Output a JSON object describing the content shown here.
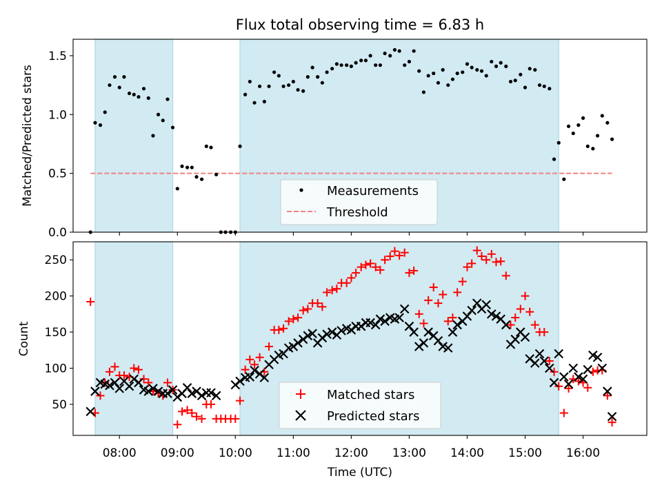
{
  "title": "Flux total observing time = 6.83 h",
  "colors": {
    "shade": "#add8e6",
    "threshold": "#f08080",
    "measurement": "#000000",
    "matched": "#ff0000",
    "predicted": "#000000"
  },
  "chart_data": [
    {
      "type": "scatter",
      "panel": "top",
      "title": "Flux total observing time = 6.83 h",
      "xlabel": "",
      "ylabel": "Matched/Predicted stars",
      "xlim": [
        7.2,
        17.1
      ],
      "ylim": [
        0,
        1.64
      ],
      "yticks": [
        {
          "value": 0.0,
          "label": "0.0"
        },
        {
          "value": 0.5,
          "label": "0.5"
        },
        {
          "value": 1.0,
          "label": "1.0"
        },
        {
          "value": 1.5,
          "label": "1.5"
        }
      ],
      "shaded_intervals": [
        [
          7.58,
          8.92
        ],
        [
          10.08,
          15.58
        ]
      ],
      "threshold": {
        "name": "Threshold",
        "value": 0.5,
        "x_range": [
          7.5,
          16.5
        ]
      },
      "legend": {
        "position": "lower-center",
        "entries": [
          "Measurements",
          "Threshold"
        ]
      },
      "series": [
        {
          "name": "Measurements",
          "x": [
            7.5,
            7.58,
            7.67,
            7.75,
            7.83,
            7.92,
            8.0,
            8.08,
            8.17,
            8.25,
            8.33,
            8.42,
            8.5,
            8.58,
            8.67,
            8.75,
            8.83,
            8.92,
            9.0,
            9.08,
            9.17,
            9.25,
            9.33,
            9.42,
            9.5,
            9.58,
            9.67,
            9.75,
            9.83,
            9.92,
            10.0,
            10.08,
            10.17,
            10.25,
            10.33,
            10.42,
            10.5,
            10.58,
            10.67,
            10.75,
            10.83,
            10.92,
            11.0,
            11.08,
            11.17,
            11.25,
            11.33,
            11.42,
            11.5,
            11.58,
            11.67,
            11.75,
            11.83,
            11.92,
            12.0,
            12.08,
            12.17,
            12.25,
            12.33,
            12.42,
            12.5,
            12.58,
            12.67,
            12.75,
            12.83,
            12.92,
            13.0,
            13.08,
            13.17,
            13.25,
            13.33,
            13.42,
            13.5,
            13.58,
            13.67,
            13.75,
            13.83,
            13.92,
            14.0,
            14.08,
            14.17,
            14.25,
            14.33,
            14.42,
            14.5,
            14.58,
            14.67,
            14.75,
            14.83,
            14.92,
            15.0,
            15.08,
            15.17,
            15.25,
            15.33,
            15.42,
            15.5,
            15.58,
            15.67,
            15.75,
            15.83,
            15.92,
            16.0,
            16.08,
            16.17,
            16.25,
            16.33,
            16.42,
            16.5
          ],
          "values": [
            0.0,
            0.93,
            0.91,
            1.02,
            1.25,
            1.32,
            1.23,
            1.32,
            1.18,
            1.17,
            1.15,
            1.22,
            1.14,
            0.82,
            1.0,
            0.95,
            1.13,
            0.89,
            0.37,
            0.56,
            0.55,
            0.55,
            0.47,
            0.45,
            0.73,
            0.72,
            0.49,
            0.0,
            0.0,
            0.0,
            0.0,
            0.73,
            1.17,
            1.28,
            1.1,
            1.24,
            1.11,
            1.24,
            1.36,
            1.33,
            1.24,
            1.25,
            1.28,
            1.21,
            1.2,
            1.32,
            1.4,
            1.32,
            1.27,
            1.36,
            1.39,
            1.43,
            1.42,
            1.42,
            1.41,
            1.44,
            1.46,
            1.46,
            1.5,
            1.42,
            1.42,
            1.52,
            1.5,
            1.55,
            1.54,
            1.42,
            1.45,
            1.54,
            1.37,
            1.19,
            1.33,
            1.35,
            1.27,
            1.38,
            1.25,
            1.3,
            1.35,
            1.36,
            1.43,
            1.4,
            1.38,
            1.37,
            1.33,
            1.45,
            1.41,
            1.44,
            1.41,
            1.28,
            1.29,
            1.34,
            1.23,
            1.39,
            1.38,
            1.25,
            1.24,
            1.22,
            0.62,
            0.76,
            0.45,
            0.9,
            0.84,
            0.91,
            0.97,
            0.73,
            0.71,
            0.82,
            0.99,
            0.93,
            0.79
          ]
        }
      ]
    },
    {
      "type": "scatter",
      "panel": "bottom",
      "title": "",
      "xlabel": "Time (UTC)",
      "ylabel": "Count",
      "xlim": [
        7.2,
        17.1
      ],
      "ylim": [
        7,
        275
      ],
      "xticks": [
        {
          "value": 8,
          "label": "08:00"
        },
        {
          "value": 9,
          "label": "09:00"
        },
        {
          "value": 10,
          "label": "10:00"
        },
        {
          "value": 11,
          "label": "11:00"
        },
        {
          "value": 12,
          "label": "12:00"
        },
        {
          "value": 13,
          "label": "13:00"
        },
        {
          "value": 14,
          "label": "14:00"
        },
        {
          "value": 15,
          "label": "15:00"
        },
        {
          "value": 16,
          "label": "16:00"
        }
      ],
      "yticks": [
        {
          "value": 50,
          "label": "50"
        },
        {
          "value": 100,
          "label": "100"
        },
        {
          "value": 150,
          "label": "150"
        },
        {
          "value": 200,
          "label": "200"
        },
        {
          "value": 250,
          "label": "250"
        }
      ],
      "shaded_intervals": [
        [
          7.58,
          8.92
        ],
        [
          10.08,
          15.58
        ]
      ],
      "legend": {
        "position": "lower-center",
        "entries": [
          "Matched stars",
          "Predicted stars"
        ]
      },
      "series": [
        {
          "name": "Matched stars",
          "marker": "plus",
          "x": [
            7.5,
            7.58,
            7.67,
            7.75,
            7.83,
            7.92,
            8.0,
            8.08,
            8.17,
            8.25,
            8.33,
            8.42,
            8.5,
            8.58,
            8.67,
            8.75,
            8.83,
            8.92,
            9.0,
            9.08,
            9.17,
            9.25,
            9.33,
            9.42,
            9.5,
            9.58,
            9.67,
            9.75,
            9.83,
            9.92,
            10.0,
            10.08,
            10.17,
            10.25,
            10.33,
            10.42,
            10.5,
            10.58,
            10.67,
            10.75,
            10.83,
            10.92,
            11.0,
            11.08,
            11.17,
            11.25,
            11.33,
            11.42,
            11.5,
            11.58,
            11.67,
            11.75,
            11.83,
            11.92,
            12.0,
            12.08,
            12.17,
            12.25,
            12.33,
            12.42,
            12.5,
            12.58,
            12.67,
            12.75,
            12.83,
            12.92,
            13.0,
            13.08,
            13.17,
            13.25,
            13.33,
            13.42,
            13.5,
            13.58,
            13.67,
            13.75,
            13.83,
            13.92,
            14.0,
            14.08,
            14.17,
            14.25,
            14.33,
            14.42,
            14.5,
            14.58,
            14.67,
            14.75,
            14.83,
            14.92,
            15.0,
            15.08,
            15.17,
            15.25,
            15.33,
            15.42,
            15.5,
            15.58,
            15.67,
            15.75,
            15.83,
            15.92,
            16.0,
            16.08,
            16.17,
            16.25,
            16.33,
            16.42,
            16.5
          ],
          "values": [
            192,
            38,
            62,
            80,
            95,
            102,
            90,
            90,
            88,
            100,
            98,
            85,
            80,
            68,
            65,
            62,
            80,
            70,
            22,
            40,
            42,
            38,
            33,
            30,
            50,
            50,
            30,
            30,
            30,
            30,
            30,
            55,
            98,
            112,
            105,
            115,
            95,
            130,
            153,
            153,
            155,
            165,
            168,
            170,
            180,
            182,
            190,
            190,
            185,
            205,
            208,
            210,
            218,
            218,
            225,
            232,
            240,
            243,
            245,
            240,
            236,
            250,
            255,
            262,
            256,
            260,
            232,
            235,
            175,
            162,
            194,
            212,
            190,
            202,
            165,
            170,
            205,
            220,
            240,
            245,
            263,
            255,
            250,
            258,
            247,
            248,
            228,
            160,
            170,
            182,
            200,
            178,
            160,
            150,
            150,
            110,
            95,
            75,
            38,
            72,
            85,
            82,
            80,
            73,
            95,
            97,
            97,
            62,
            25
          ]
        },
        {
          "name": "Predicted stars",
          "marker": "x",
          "x": [
            7.5,
            7.58,
            7.67,
            7.75,
            7.83,
            7.92,
            8.0,
            8.08,
            8.17,
            8.25,
            8.33,
            8.42,
            8.5,
            8.58,
            8.67,
            8.75,
            8.83,
            8.92,
            9.0,
            9.08,
            9.17,
            9.25,
            9.33,
            9.42,
            9.5,
            9.58,
            9.67,
            10.0,
            10.08,
            10.17,
            10.25,
            10.33,
            10.42,
            10.5,
            10.58,
            10.67,
            10.75,
            10.83,
            10.92,
            11.0,
            11.08,
            11.17,
            11.25,
            11.33,
            11.42,
            11.5,
            11.58,
            11.67,
            11.75,
            11.83,
            11.92,
            12.0,
            12.08,
            12.17,
            12.25,
            12.33,
            12.42,
            12.5,
            12.58,
            12.67,
            12.75,
            12.83,
            12.92,
            13.0,
            13.08,
            13.17,
            13.25,
            13.33,
            13.42,
            13.5,
            13.58,
            13.67,
            13.75,
            13.83,
            13.92,
            14.0,
            14.08,
            14.17,
            14.25,
            14.33,
            14.42,
            14.5,
            14.58,
            14.67,
            14.75,
            14.83,
            14.92,
            15.0,
            15.08,
            15.17,
            15.25,
            15.33,
            15.42,
            15.5,
            15.58,
            15.67,
            15.75,
            15.83,
            15.92,
            16.0,
            16.08,
            16.17,
            16.25,
            16.33,
            16.42,
            16.5
          ],
          "values": [
            40,
            68,
            80,
            78,
            76,
            80,
            72,
            82,
            75,
            85,
            80,
            70,
            68,
            72,
            68,
            65,
            65,
            70,
            60,
            65,
            73,
            65,
            68,
            62,
            66,
            66,
            62,
            77,
            82,
            87,
            88,
            97,
            92,
            87,
            105,
            112,
            118,
            120,
            128,
            130,
            135,
            140,
            145,
            148,
            135,
            142,
            147,
            150,
            146,
            152,
            155,
            153,
            158,
            158,
            163,
            163,
            160,
            168,
            165,
            170,
            168,
            170,
            182,
            158,
            150,
            130,
            135,
            150,
            145,
            138,
            130,
            128,
            150,
            160,
            165,
            172,
            180,
            190,
            182,
            188,
            175,
            172,
            168,
            160,
            133,
            140,
            150,
            143,
            113,
            107,
            120,
            110,
            100,
            80,
            120,
            88,
            78,
            100,
            88,
            85,
            98,
            118,
            115,
            100,
            68,
            33
          ]
        }
      ]
    }
  ]
}
